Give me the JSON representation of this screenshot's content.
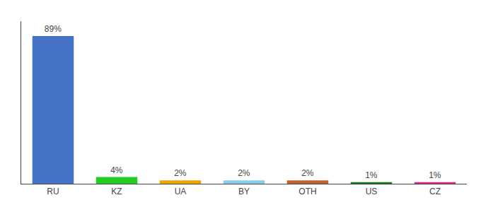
{
  "chart_data": {
    "type": "bar",
    "categories": [
      "RU",
      "KZ",
      "UA",
      "BY",
      "OTH",
      "US",
      "CZ"
    ],
    "values": [
      89,
      4,
      2,
      2,
      2,
      1,
      1
    ],
    "value_labels": [
      "89%",
      "4%",
      "2%",
      "2%",
      "2%",
      "1%",
      "1%"
    ],
    "colors": [
      "#4472c4",
      "#22cc22",
      "#f0a500",
      "#87ceeb",
      "#c0622c",
      "#1a7a1a",
      "#e0258a"
    ],
    "ylim": [
      0,
      98
    ],
    "grid": false,
    "tick_labels": "x",
    "data_labels": true
  }
}
